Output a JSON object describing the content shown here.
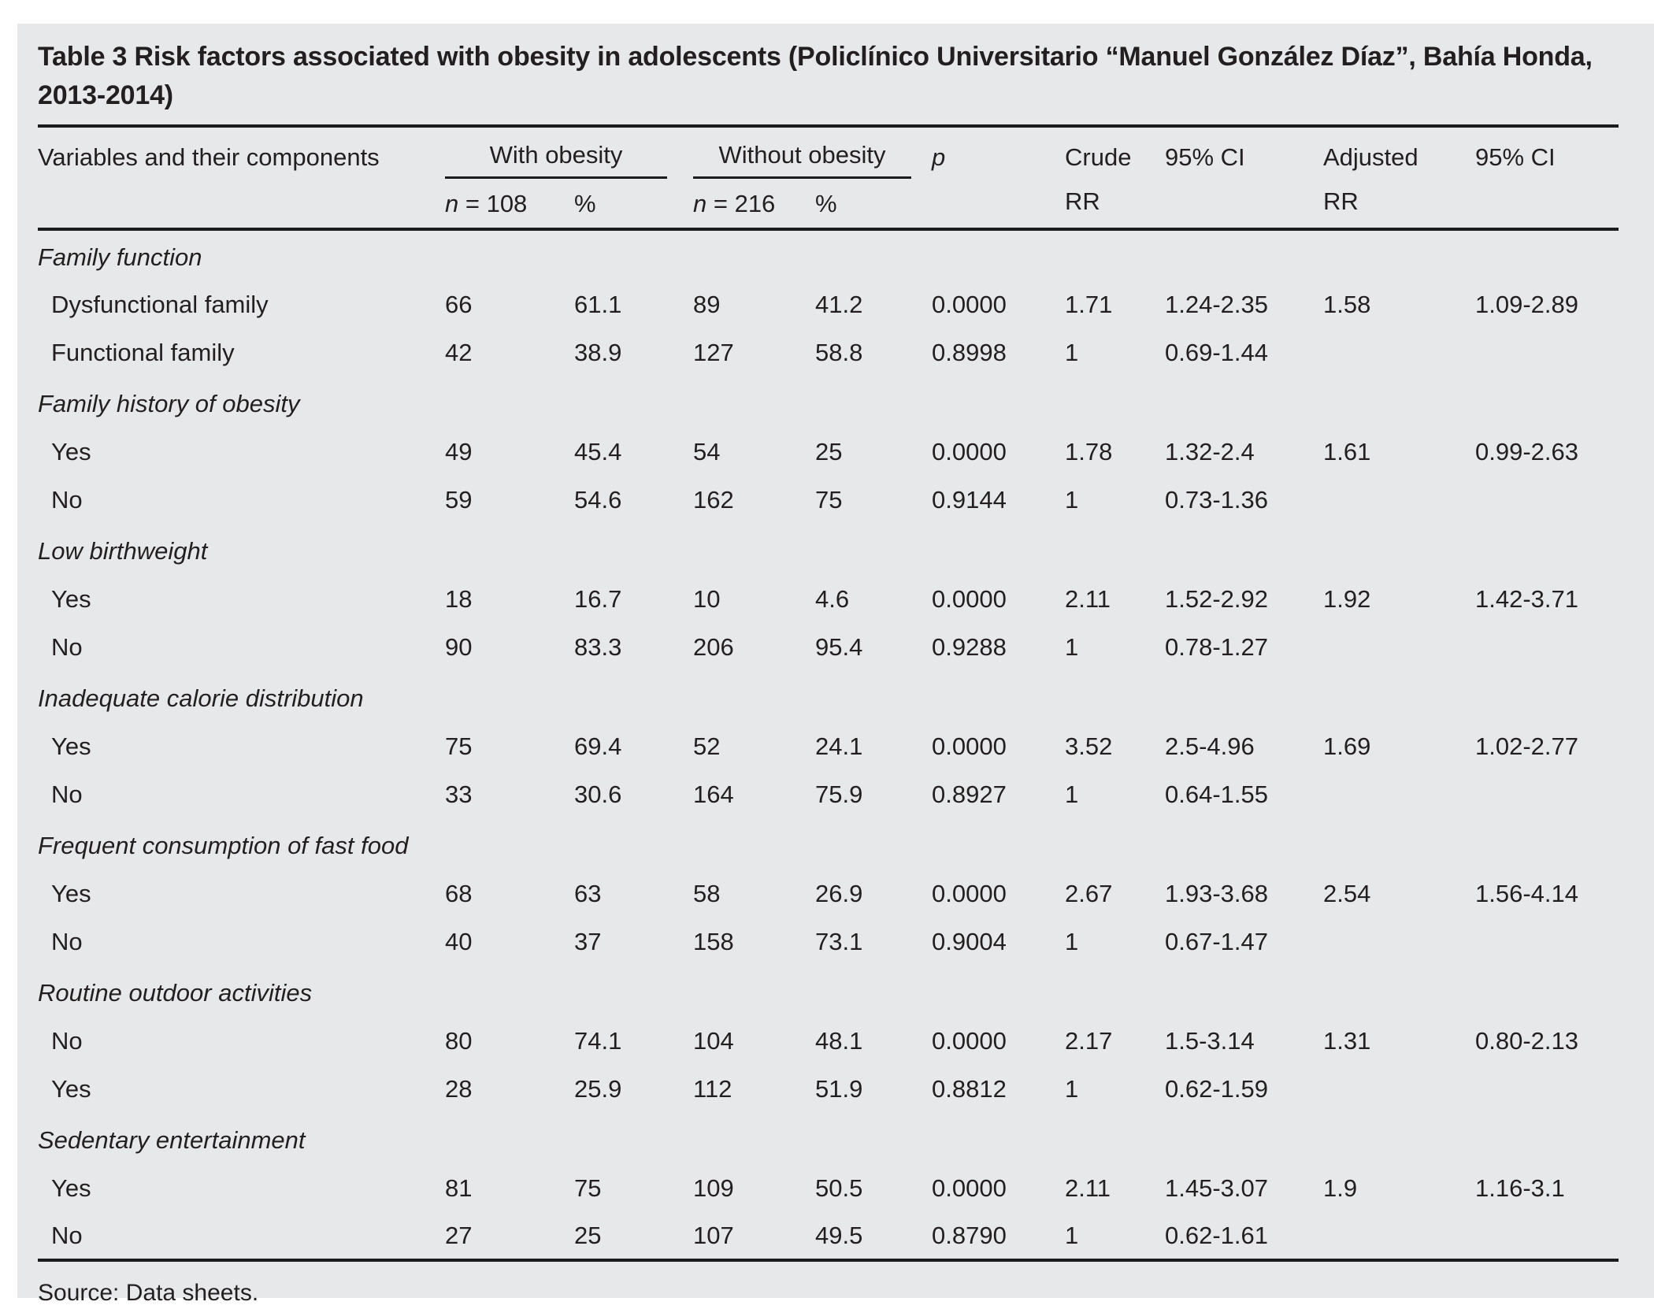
{
  "title": "Table 3 Risk factors associated with obesity in adolescents (Policlínico Universitario “Manuel González Díaz”, Bahía Honda, 2013-2014)",
  "header": {
    "variables": "Variables and their components",
    "with_obesity": "With obesity",
    "without_obesity": "Without obesity",
    "n_with_italic": "n",
    "n_with_rest": " = 108",
    "percent_with": "%",
    "n_without_italic": "n",
    "n_without_rest": " = 216",
    "percent_without": "%",
    "p": "p",
    "crude_line1": "Crude",
    "crude_line2": "RR",
    "ci_crude": "95% CI",
    "adjusted_line1": "Adjusted",
    "adjusted_line2": "RR",
    "ci_adjusted": "95% CI"
  },
  "sections": [
    {
      "name": "Family function",
      "rows": [
        {
          "label": "Dysfunctional family",
          "n1": "66",
          "pct1": "61.1",
          "n2": "89",
          "pct2": "41.2",
          "p": "0.0000",
          "crude": "1.71",
          "ci1": "1.24-2.35",
          "adj": "1.58",
          "ci2": "1.09-2.89"
        },
        {
          "label": "Functional family",
          "n1": "42",
          "pct1": "38.9",
          "n2": "127",
          "pct2": "58.8",
          "p": "0.8998",
          "crude": "1",
          "ci1": "0.69-1.44",
          "adj": "",
          "ci2": ""
        }
      ]
    },
    {
      "name": "Family history of obesity",
      "rows": [
        {
          "label": "Yes",
          "n1": "49",
          "pct1": "45.4",
          "n2": "54",
          "pct2": "25",
          "p": "0.0000",
          "crude": "1.78",
          "ci1": "1.32-2.4",
          "adj": "1.61",
          "ci2": "0.99-2.63"
        },
        {
          "label": "No",
          "n1": "59",
          "pct1": "54.6",
          "n2": "162",
          "pct2": "75",
          "p": "0.9144",
          "crude": "1",
          "ci1": "0.73-1.36",
          "adj": "",
          "ci2": ""
        }
      ]
    },
    {
      "name": "Low birthweight",
      "rows": [
        {
          "label": "Yes",
          "n1": "18",
          "pct1": "16.7",
          "n2": "10",
          "pct2": "4.6",
          "p": "0.0000",
          "crude": "2.11",
          "ci1": "1.52-2.92",
          "adj": "1.92",
          "ci2": "1.42-3.71"
        },
        {
          "label": "No",
          "n1": "90",
          "pct1": "83.3",
          "n2": "206",
          "pct2": "95.4",
          "p": "0.9288",
          "crude": "1",
          "ci1": "0.78-1.27",
          "adj": "",
          "ci2": ""
        }
      ]
    },
    {
      "name": "Inadequate calorie distribution",
      "rows": [
        {
          "label": "Yes",
          "n1": "75",
          "pct1": "69.4",
          "n2": "52",
          "pct2": "24.1",
          "p": "0.0000",
          "crude": "3.52",
          "ci1": "2.5-4.96",
          "adj": "1.69",
          "ci2": "1.02-2.77"
        },
        {
          "label": "No",
          "n1": "33",
          "pct1": "30.6",
          "n2": "164",
          "pct2": "75.9",
          "p": "0.8927",
          "crude": "1",
          "ci1": "0.64-1.55",
          "adj": "",
          "ci2": ""
        }
      ]
    },
    {
      "name": "Frequent consumption of fast food",
      "rows": [
        {
          "label": "Yes",
          "n1": "68",
          "pct1": "63",
          "n2": "58",
          "pct2": "26.9",
          "p": "0.0000",
          "crude": "2.67",
          "ci1": "1.93-3.68",
          "adj": "2.54",
          "ci2": "1.56-4.14"
        },
        {
          "label": "No",
          "n1": "40",
          "pct1": "37",
          "n2": "158",
          "pct2": "73.1",
          "p": "0.9004",
          "crude": "1",
          "ci1": "0.67-1.47",
          "adj": "",
          "ci2": ""
        }
      ]
    },
    {
      "name": "Routine outdoor activities",
      "rows": [
        {
          "label": "No",
          "n1": "80",
          "pct1": "74.1",
          "n2": "104",
          "pct2": "48.1",
          "p": "0.0000",
          "crude": "2.17",
          "ci1": "1.5-3.14",
          "adj": "1.31",
          "ci2": "0.80-2.13"
        },
        {
          "label": "Yes",
          "n1": "28",
          "pct1": "25.9",
          "n2": "112",
          "pct2": "51.9",
          "p": "0.8812",
          "crude": "1",
          "ci1": "0.62-1.59",
          "adj": "",
          "ci2": ""
        }
      ]
    },
    {
      "name": "Sedentary entertainment",
      "rows": [
        {
          "label": "Yes",
          "n1": "81",
          "pct1": "75",
          "n2": "109",
          "pct2": "50.5",
          "p": "0.0000",
          "crude": "2.11",
          "ci1": "1.45-3.07",
          "adj": "1.9",
          "ci2": "1.16-3.1"
        },
        {
          "label": "No",
          "n1": "27",
          "pct1": "25",
          "n2": "107",
          "pct2": "49.5",
          "p": "0.8790",
          "crude": "1",
          "ci1": "0.62-1.61",
          "adj": "",
          "ci2": ""
        }
      ]
    }
  ],
  "source": "Source: Data sheets.",
  "colors": {
    "panel_background": "#e7e8e9",
    "text": "#231f20",
    "rule": "#1c1c1c"
  }
}
